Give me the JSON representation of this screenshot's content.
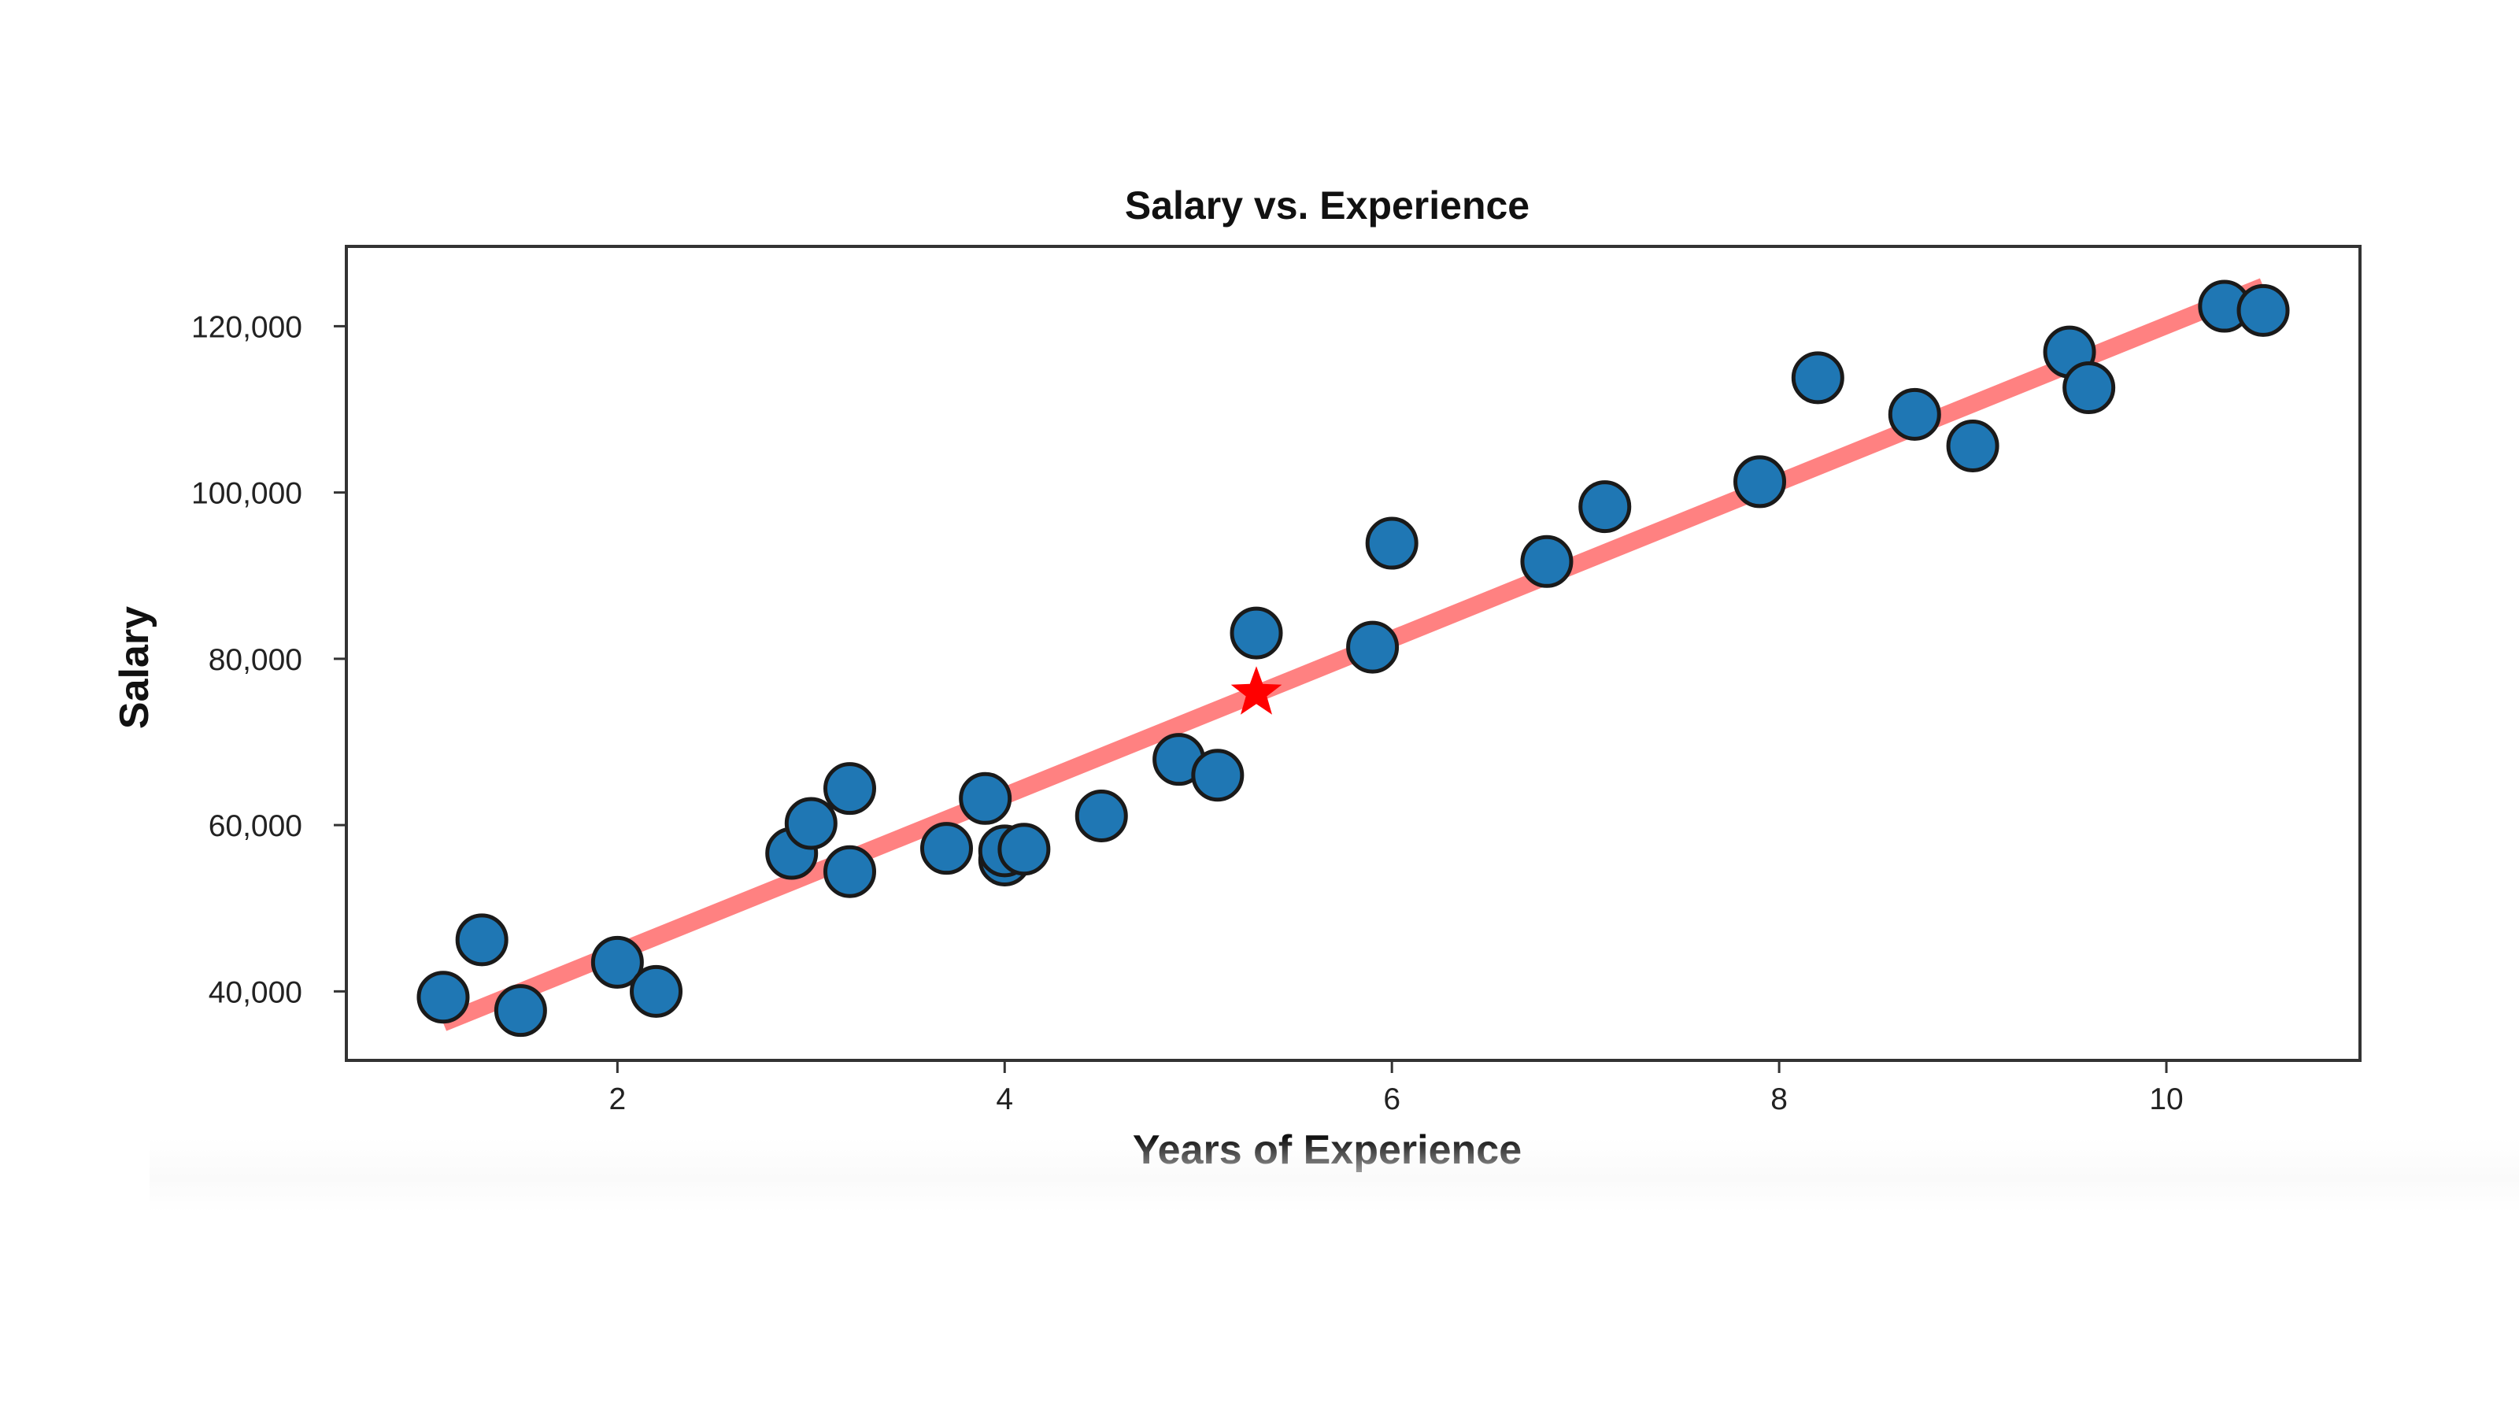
{
  "chart_data": {
    "type": "scatter",
    "title": "Salary vs. Experience",
    "xlabel": "Years of Experience",
    "ylabel": "Salary",
    "xlim": [
      0.6,
      11.0
    ],
    "ylim": [
      31700,
      129600
    ],
    "x_ticks": [
      {
        "value": 2,
        "label": "2"
      },
      {
        "value": 4,
        "label": "4"
      },
      {
        "value": 6,
        "label": "6"
      },
      {
        "value": 8,
        "label": "8"
      },
      {
        "value": 10,
        "label": "10"
      }
    ],
    "y_ticks": [
      {
        "value": 40000,
        "label": "40,000"
      },
      {
        "value": 60000,
        "label": "60,000"
      },
      {
        "value": 80000,
        "label": "80,000"
      },
      {
        "value": 100000,
        "label": "100,000"
      },
      {
        "value": 120000,
        "label": "120,000"
      }
    ],
    "grid": false,
    "series": [
      {
        "kind": "scatter",
        "color": "#1f77b4",
        "points": [
          {
            "x": 1.1,
            "y": 39300
          },
          {
            "x": 1.3,
            "y": 46200
          },
          {
            "x": 1.5,
            "y": 37700
          },
          {
            "x": 2.0,
            "y": 43500
          },
          {
            "x": 2.2,
            "y": 40000
          },
          {
            "x": 2.9,
            "y": 56600
          },
          {
            "x": 3.0,
            "y": 60200
          },
          {
            "x": 3.2,
            "y": 64400
          },
          {
            "x": 3.2,
            "y": 54400
          },
          {
            "x": 3.7,
            "y": 57200
          },
          {
            "x": 3.9,
            "y": 63200
          },
          {
            "x": 4.0,
            "y": 55800
          },
          {
            "x": 4.0,
            "y": 56900
          },
          {
            "x": 4.1,
            "y": 57100
          },
          {
            "x": 4.5,
            "y": 61100
          },
          {
            "x": 4.9,
            "y": 67900
          },
          {
            "x": 5.1,
            "y": 66000
          },
          {
            "x": 5.3,
            "y": 83100
          },
          {
            "x": 5.9,
            "y": 81400
          },
          {
            "x": 6.0,
            "y": 93900
          },
          {
            "x": 6.8,
            "y": 91700
          },
          {
            "x": 7.1,
            "y": 98300
          },
          {
            "x": 7.9,
            "y": 101300
          },
          {
            "x": 8.2,
            "y": 113800
          },
          {
            "x": 8.7,
            "y": 109400
          },
          {
            "x": 9.0,
            "y": 105600
          },
          {
            "x": 9.5,
            "y": 116900
          },
          {
            "x": 9.6,
            "y": 112600
          },
          {
            "x": 10.3,
            "y": 122400
          },
          {
            "x": 10.5,
            "y": 121900
          }
        ]
      },
      {
        "kind": "line",
        "color": "#ff6b6b",
        "points": [
          {
            "x": 1.1,
            "y": 36200
          },
          {
            "x": 10.5,
            "y": 124800
          }
        ]
      },
      {
        "kind": "marker",
        "marker": "star",
        "color": "#ff0000",
        "points": [
          {
            "x": 5.3,
            "y": 75900
          }
        ]
      }
    ]
  }
}
